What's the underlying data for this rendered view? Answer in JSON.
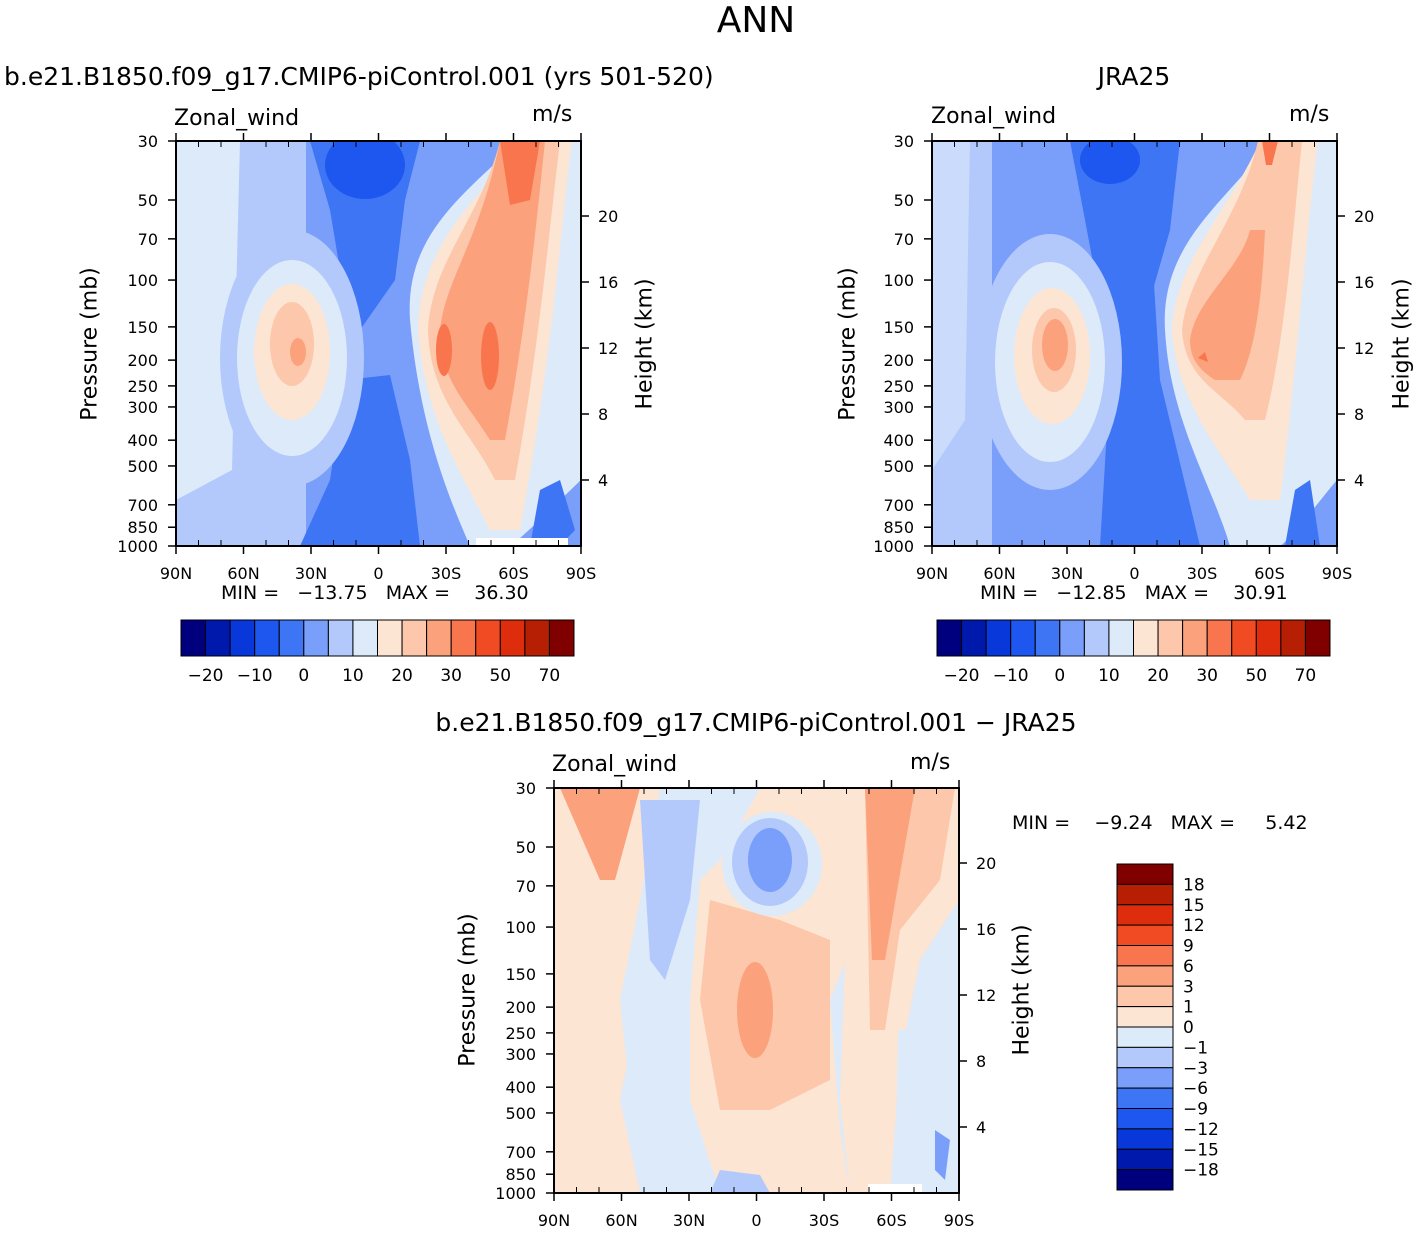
{
  "page": {
    "title": "ANN"
  },
  "panels": [
    {
      "title": "b.e21.B1850.f09_g17.CMIP6-piControl.001 (yrs 501-520)",
      "variable": "Zonal_wind",
      "units": "m/s",
      "min_max": "MIN =   −13.75   MAX =    36.30"
    },
    {
      "title": "JRA25",
      "variable": "Zonal_wind",
      "units": "m/s",
      "min_max": "MIN =   −12.85   MAX =    30.91"
    },
    {
      "title": "b.e21.B1850.f09_g17.CMIP6-piControl.001 − JRA25",
      "variable": "Zonal_wind",
      "units": "m/s",
      "min_max": "MIN =    −9.24   MAX =     5.42"
    }
  ],
  "axes": {
    "y_label": "Pressure (mb)",
    "y_right_label": "Height (km)",
    "y_ticks": [
      "30",
      "50",
      "70",
      "100",
      "150",
      "200",
      "250",
      "300",
      "400",
      "500",
      "700",
      "850",
      "1000"
    ],
    "y_right_ticks": [
      "20",
      "16",
      "12",
      "8",
      "4"
    ],
    "x_ticks": [
      "90N",
      "60N",
      "30N",
      "0",
      "30S",
      "60S",
      "90S"
    ]
  },
  "colorbars": {
    "top_labels": [
      "−20",
      "−10",
      "0",
      "10",
      "20",
      "30",
      "50",
      "70"
    ],
    "diff_labels": [
      "18",
      "15",
      "12",
      "9",
      "6",
      "3",
      "1",
      "0",
      "−1",
      "−3",
      "−6",
      "−9",
      "−12",
      "−15",
      "−18"
    ],
    "top_colors": [
      "#00007f",
      "#0019ad",
      "#0838d9",
      "#1e56f0",
      "#3d75f5",
      "#7a9ffa",
      "#b3c9fc",
      "#dceafa",
      "#fde5d3",
      "#fdc7ab",
      "#fba27d",
      "#f9754d",
      "#f04b22",
      "#de2d0d",
      "#b71f05",
      "#800000"
    ],
    "diff_colors": [
      "#800000",
      "#b71f05",
      "#de2d0d",
      "#f04b22",
      "#f9754d",
      "#fba27d",
      "#fdc7ab",
      "#fde5d3",
      "#dceafa",
      "#b3c9fc",
      "#7a9ffa",
      "#3d75f5",
      "#1e56f0",
      "#0838d9",
      "#0019ad",
      "#00007f"
    ]
  },
  "chart_data": [
    {
      "type": "heatmap",
      "title": "b.e21.B1850.f09_g17.CMIP6-piControl.001 (yrs 501-520)",
      "xlabel": "",
      "ylabel": "Pressure (mb)",
      "y2label": "Height (km)",
      "x_ticks": [
        "90N",
        "60N",
        "30N",
        "0",
        "30S",
        "60S",
        "90S"
      ],
      "ylim": [
        1000,
        30
      ],
      "yscale": "log",
      "min": -13.75,
      "max": 36.3,
      "levels": [
        -20,
        -15,
        -10,
        -5,
        0,
        5,
        10,
        15,
        20,
        25,
        30,
        40,
        50,
        60,
        70
      ],
      "features": [
        {
          "lat": -55,
          "pressure": 200,
          "u": 36.3
        },
        {
          "lat": -35,
          "pressure": 200,
          "u": 33
        },
        {
          "lat": -60,
          "pressure": 40,
          "u": 28
        },
        {
          "lat": 32,
          "pressure": 200,
          "u": 27
        },
        {
          "lat": 0,
          "pressure": 30,
          "u": -13.75
        },
        {
          "lat": 0,
          "pressure": 600,
          "u": -8
        }
      ]
    },
    {
      "type": "heatmap",
      "title": "JRA25",
      "xlabel": "",
      "ylabel": "Pressure (mb)",
      "y2label": "Height (km)",
      "x_ticks": [
        "90N",
        "60N",
        "30N",
        "0",
        "30S",
        "60S",
        "90S"
      ],
      "ylim": [
        1000,
        30
      ],
      "yscale": "log",
      "min": -12.85,
      "max": 30.91,
      "levels": [
        -20,
        -15,
        -10,
        -5,
        0,
        5,
        10,
        15,
        20,
        25,
        30,
        40,
        50,
        60,
        70
      ],
      "features": [
        {
          "lat": -30,
          "pressure": 200,
          "u": 30.91
        },
        {
          "lat": 35,
          "pressure": 200,
          "u": 27
        },
        {
          "lat": -58,
          "pressure": 35,
          "u": 25
        },
        {
          "lat": 10,
          "pressure": 30,
          "u": -12.85
        },
        {
          "lat": 0,
          "pressure": 600,
          "u": -8
        }
      ]
    },
    {
      "type": "heatmap",
      "title": "b.e21.B1850.f09_g17.CMIP6-piControl.001 − JRA25",
      "xlabel": "",
      "ylabel": "Pressure (mb)",
      "y2label": "Height (km)",
      "x_ticks": [
        "90N",
        "60N",
        "30N",
        "0",
        "30S",
        "60S",
        "90S"
      ],
      "ylim": [
        1000,
        30
      ],
      "yscale": "log",
      "min": -9.24,
      "max": 5.42,
      "levels": [
        -18,
        -15,
        -12,
        -9,
        -6,
        -3,
        -1,
        0,
        1,
        3,
        6,
        9,
        12,
        15,
        18
      ],
      "features": [
        {
          "lat": 0,
          "pressure": 60,
          "u": -9.24
        },
        {
          "lat": 75,
          "pressure": 40,
          "u": 4
        },
        {
          "lat": -50,
          "pressure": 60,
          "u": 5.42
        },
        {
          "lat": -5,
          "pressure": 250,
          "u": 5
        },
        {
          "lat": 40,
          "pressure": 60,
          "u": -2
        },
        {
          "lat": -70,
          "pressure": 500,
          "u": -2
        }
      ]
    }
  ]
}
